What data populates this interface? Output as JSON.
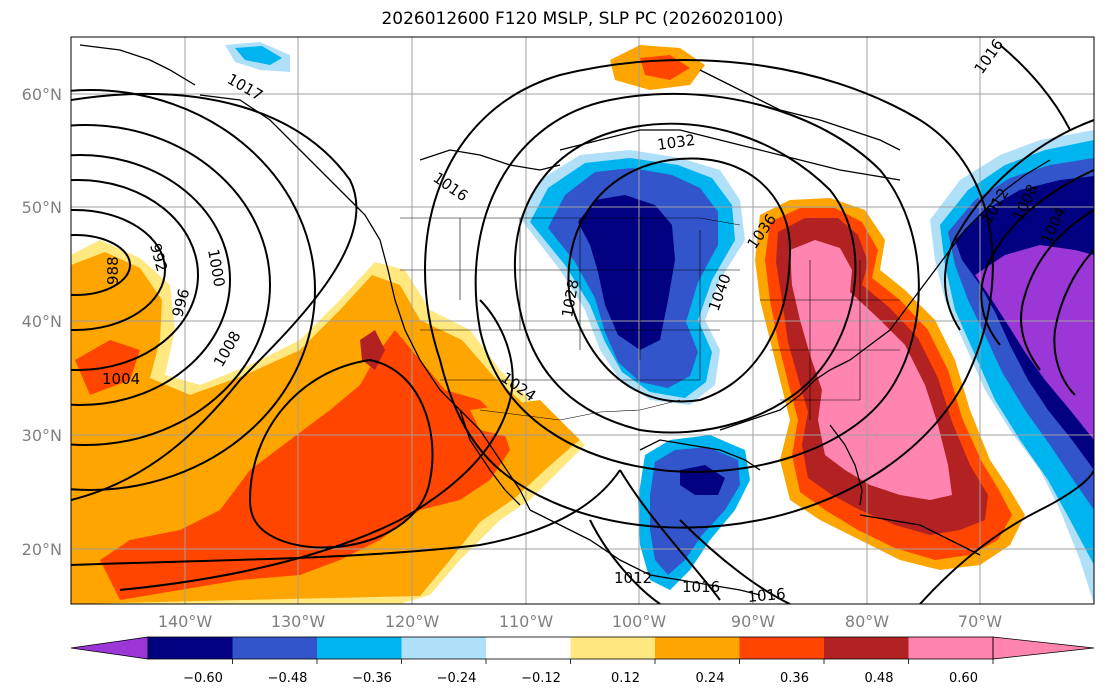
{
  "title": "2026012600 F120 MSLP, SLP PC (2026020100)",
  "lat_labels": [
    "60°N",
    "50°N",
    "40°N",
    "30°N",
    "20°N"
  ],
  "lon_labels": [
    "140°W",
    "130°W",
    "120°W",
    "110°W",
    "100°W",
    "90°W",
    "80°W",
    "70°W"
  ],
  "colorbar": {
    "ticks": [
      "−0.60",
      "−0.48",
      "−0.36",
      "−0.24",
      "−0.12",
      "0.12",
      "0.24",
      "0.36",
      "0.48",
      "0.60"
    ],
    "colors": [
      "#9a37d6",
      "#000080",
      "#3355cc",
      "#00b4f0",
      "#b0e0f8",
      "#ffffff",
      "#ffe880",
      "#ffa500",
      "#ff4500",
      "#b22222",
      "#ff85b0"
    ]
  },
  "isobars": {
    "l1017": "1017",
    "l1016a": "1016",
    "l1032": "1032",
    "l1036": "1036",
    "l1040": "1040",
    "l1028": "1028",
    "l1024": "1024",
    "l1008": "1008",
    "l1004": "1004",
    "l1000": "1000",
    "l996": "996",
    "l992": "992",
    "l988": "988",
    "l1012a": "1012",
    "l1016b": "1016",
    "l1016c": "1016",
    "l1012b": "1012",
    "l1008b": "1008",
    "l1004b": "1004",
    "l1016d": "1016"
  }
}
